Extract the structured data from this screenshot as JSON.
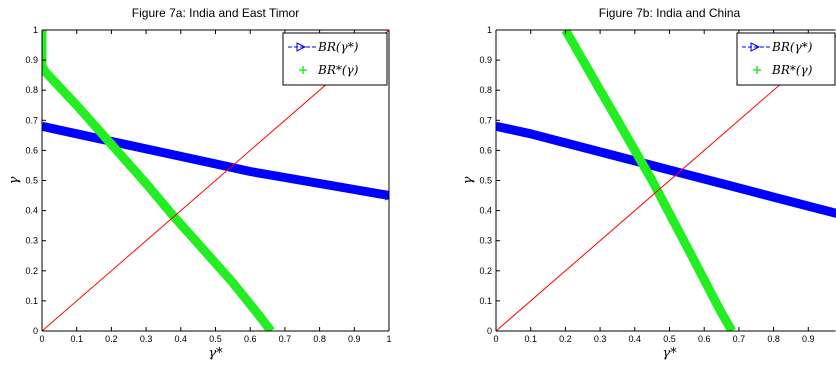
{
  "chart_data": [
    {
      "type": "line",
      "title": "Figure 7a: India and East Timor",
      "xlabel": "γ*",
      "ylabel": "γ",
      "xlim": [
        0,
        1
      ],
      "ylim": [
        0,
        1
      ],
      "xticks": [
        "0",
        "0.1",
        "0.2",
        "0.3",
        "0.4",
        "0.5",
        "0.6",
        "0.7",
        "0.8",
        "0.9",
        "1"
      ],
      "yticks": [
        "0",
        "0.1",
        "0.2",
        "0.3",
        "0.4",
        "0.5",
        "0.6",
        "0.7",
        "0.8",
        "0.9",
        "1"
      ],
      "legend_position": "top-right",
      "series": [
        {
          "name": "BR(γ*)",
          "legend_text": "BR(γ*)",
          "color": "#0000ff",
          "x": [
            0,
            0.1,
            0.2,
            0.3,
            0.4,
            0.5,
            0.6,
            0.7,
            0.8,
            0.9,
            1.0
          ],
          "y": [
            0.68,
            0.655,
            0.63,
            0.605,
            0.58,
            0.555,
            0.53,
            0.51,
            0.49,
            0.47,
            0.45
          ]
        },
        {
          "name": "BR*(γ)",
          "legend_text": "BR*(γ)",
          "color": "#22ee22",
          "x": [
            0,
            0,
            0.01,
            0.1,
            0.2,
            0.3,
            0.38,
            0.45,
            0.55,
            0.62,
            0.66
          ],
          "y": [
            1.0,
            0.88,
            0.86,
            0.75,
            0.62,
            0.49,
            0.38,
            0.29,
            0.16,
            0.06,
            0.0
          ]
        },
        {
          "type": "reference",
          "color": "#ff0000",
          "x": [
            0,
            1
          ],
          "y": [
            0,
            1
          ]
        }
      ]
    },
    {
      "type": "line",
      "title": "Figure 7b: India and China",
      "xlabel": "γ*",
      "ylabel": "γ",
      "xlim": [
        0,
        1
      ],
      "ylim": [
        0,
        1
      ],
      "xticks": [
        "0",
        "0.1",
        "0.2",
        "0.3",
        "0.4",
        "0.5",
        "0.6",
        "0.7",
        "0.8",
        "0.9"
      ],
      "yticks": [
        "0",
        "0.1",
        "0.2",
        "0.3",
        "0.4",
        "0.5",
        "0.6",
        "0.7",
        "0.8",
        "0.9",
        "1"
      ],
      "legend_position": "top-right",
      "series": [
        {
          "name": "BR(γ*)",
          "legend_text": "BR(γ*)",
          "color": "#0000ff",
          "x": [
            0,
            0.1,
            0.2,
            0.3,
            0.4,
            0.5,
            0.6,
            0.7,
            0.8,
            0.9,
            1.0
          ],
          "y": [
            0.68,
            0.655,
            0.625,
            0.595,
            0.565,
            0.535,
            0.505,
            0.475,
            0.445,
            0.415,
            0.385
          ]
        },
        {
          "name": "BR*(γ)",
          "legend_text": "BR*(γ)",
          "color": "#22ee22",
          "x": [
            0.2,
            0.25,
            0.3,
            0.35,
            0.4,
            0.45,
            0.5,
            0.55,
            0.6,
            0.65,
            0.68
          ],
          "y": [
            1.0,
            0.9,
            0.8,
            0.7,
            0.6,
            0.5,
            0.39,
            0.28,
            0.17,
            0.06,
            0.0
          ]
        },
        {
          "type": "reference",
          "color": "#ff0000",
          "x": [
            0,
            1
          ],
          "y": [
            0,
            1
          ]
        }
      ]
    }
  ]
}
